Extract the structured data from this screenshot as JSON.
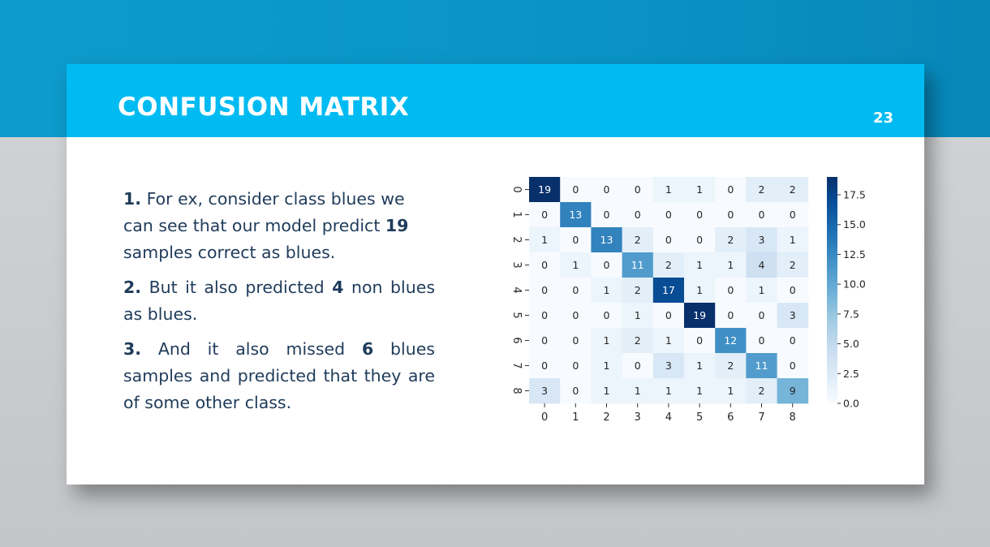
{
  "slide": {
    "title": "CONFUSION MATRIX",
    "page_number": "23"
  },
  "points": [
    {
      "num": "1.",
      "t1": " For ex, consider class blues we can see that our model predict ",
      "b1": "19",
      "t2": " samples correct as blues.",
      "b2": "",
      "t3": ""
    },
    {
      "num": "2.",
      "t1": " But it also predicted ",
      "b1": "4",
      "t2": " non blues as blues.",
      "b2": "",
      "t3": ""
    },
    {
      "num": "3.",
      "t1": " And it also missed ",
      "b1": "6",
      "t2": " blues samples and predicted that they are of some other class.",
      "b2": "",
      "t3": ""
    }
  ],
  "colors": {
    "header_bg": "#00bbf1",
    "text": "#1f3b5a",
    "heatmap_low": "#f7fbff",
    "heatmap_high": "#08306b"
  },
  "chart_data": {
    "type": "heatmap",
    "title": "",
    "xlabel": "",
    "ylabel": "",
    "x_labels": [
      "0",
      "1",
      "2",
      "3",
      "4",
      "5",
      "6",
      "7",
      "8"
    ],
    "y_labels": [
      "0",
      "1",
      "2",
      "3",
      "4",
      "5",
      "6",
      "7",
      "8"
    ],
    "values": [
      [
        19,
        0,
        0,
        0,
        1,
        1,
        0,
        2,
        2
      ],
      [
        0,
        13,
        0,
        0,
        0,
        0,
        0,
        0,
        0
      ],
      [
        1,
        0,
        13,
        2,
        0,
        0,
        2,
        3,
        1
      ],
      [
        0,
        1,
        0,
        11,
        2,
        1,
        1,
        4,
        2
      ],
      [
        0,
        0,
        1,
        2,
        17,
        1,
        0,
        1,
        0
      ],
      [
        0,
        0,
        0,
        1,
        0,
        19,
        0,
        0,
        3
      ],
      [
        0,
        0,
        1,
        2,
        1,
        0,
        12,
        0,
        0
      ],
      [
        0,
        0,
        1,
        0,
        3,
        1,
        2,
        11,
        0
      ],
      [
        3,
        0,
        1,
        1,
        1,
        1,
        1,
        2,
        9
      ]
    ],
    "colormap": "Blues",
    "vmin": 0,
    "vmax": 19,
    "colorbar_ticks": [
      "0.0",
      "2.5",
      "5.0",
      "7.5",
      "10.0",
      "12.5",
      "15.0",
      "17.5"
    ],
    "colorbar_tick_values": [
      0,
      2.5,
      5,
      7.5,
      10,
      12.5,
      15,
      17.5
    ],
    "annotations": true
  }
}
